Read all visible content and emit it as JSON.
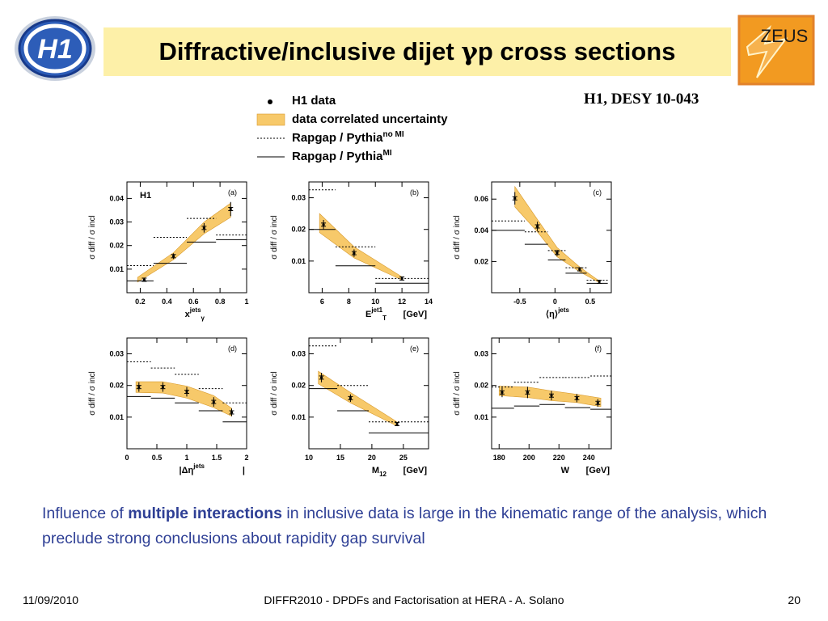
{
  "header": {
    "title_prefix": "Diffractive/inclusive dijet ",
    "title_greek": "γ",
    "title_suffix": "p cross sections",
    "reference": "H1, DESY 10-043",
    "left_logo_text": "H1",
    "right_logo_text": "ZEUS"
  },
  "legend": {
    "items": [
      {
        "marker": "point",
        "label": "H1 data",
        "sup": ""
      },
      {
        "marker": "band",
        "label": "data correlated uncertainty",
        "sup": ""
      },
      {
        "marker": "dotted",
        "label": "Rapgap / Pythia",
        "sup": "no MI"
      },
      {
        "marker": "solid",
        "label": "Rapgap / Pythia",
        "sup": "MI"
      }
    ]
  },
  "colors": {
    "band": "#f7c96a",
    "band_edge": "#d89a2c",
    "title_bg": "#fdf0a8",
    "note_text": "#2e3f95",
    "h1_logo": "#2d5db8",
    "zeus_logo": "#f29a21"
  },
  "chart_data": [
    {
      "type": "line",
      "panel": "(a)",
      "experiment_label": "H1",
      "ylabel": "σ diff / σ incl",
      "xlabel_main": "x",
      "xlabel_sup": "jets",
      "xlabel_sub": "γ",
      "xunit": "",
      "xlim": [
        0.1,
        1.0
      ],
      "ylim": [
        0.0,
        0.047
      ],
      "xticks": [
        0.2,
        0.4,
        0.6,
        0.8,
        1
      ],
      "xtick_labels": [
        "0.2",
        "0.4",
        "0.6",
        "0.8",
        "1"
      ],
      "yticks": [
        0.01,
        0.02,
        0.03,
        0.04
      ],
      "ytick_labels": [
        "0.01",
        "0.02",
        "0.03",
        "0.04"
      ],
      "data": {
        "x": [
          0.23,
          0.45,
          0.68,
          0.88
        ],
        "y": [
          0.0055,
          0.0155,
          0.0275,
          0.0355
        ],
        "err": [
          0.0008,
          0.0012,
          0.002,
          0.003
        ]
      },
      "band": {
        "x": [
          0.18,
          0.45,
          0.68,
          0.88
        ],
        "low": [
          0.0045,
          0.014,
          0.025,
          0.032
        ],
        "high": [
          0.0065,
          0.017,
          0.03,
          0.038
        ]
      },
      "no_mi": {
        "edges": [
          0.1,
          0.3,
          0.55,
          0.77,
          1.0
        ],
        "values": [
          0.0115,
          0.0235,
          0.0315,
          0.0245
        ]
      },
      "mi": {
        "edges": [
          0.1,
          0.3,
          0.55,
          0.77,
          1.0
        ],
        "values": [
          0.005,
          0.0125,
          0.0215,
          0.0225
        ]
      }
    },
    {
      "type": "line",
      "panel": "(b)",
      "experiment_label": "",
      "ylabel": "σ diff / σ incl",
      "xlabel_main": "E",
      "xlabel_sup": "jet1",
      "xlabel_sub": "T",
      "xunit": "[GeV]",
      "xlim": [
        5,
        14
      ],
      "ylim": [
        0.0,
        0.035
      ],
      "xticks": [
        6,
        8,
        10,
        12,
        14
      ],
      "xtick_labels": [
        "6",
        "8",
        "10",
        "12",
        "14"
      ],
      "yticks": [
        0.01,
        0.02,
        0.03
      ],
      "ytick_labels": [
        "0.01",
        "0.02",
        "0.03"
      ],
      "data": {
        "x": [
          6.1,
          8.4,
          12.0
        ],
        "y": [
          0.0215,
          0.0125,
          0.0045
        ],
        "err": [
          0.0015,
          0.0012,
          0.0006
        ]
      },
      "band": {
        "x": [
          5.8,
          8.4,
          12.0
        ],
        "low": [
          0.019,
          0.011,
          0.004
        ],
        "high": [
          0.025,
          0.0145,
          0.005
        ]
      },
      "no_mi": {
        "edges": [
          5,
          7,
          10,
          14
        ],
        "values": [
          0.0325,
          0.0145,
          0.0045
        ]
      },
      "mi": {
        "edges": [
          5,
          7,
          10,
          14
        ],
        "values": [
          0.02,
          0.0085,
          0.003
        ]
      }
    },
    {
      "type": "line",
      "panel": "(c)",
      "experiment_label": "",
      "ylabel": "σ diff / σ incl",
      "xlabel_main": "⟨η⟩",
      "xlabel_sup": "jets",
      "xlabel_sub": "",
      "xunit": "",
      "xlim": [
        -0.9,
        0.8
      ],
      "ylim": [
        0.0,
        0.071
      ],
      "xticks": [
        -0.5,
        0,
        0.5
      ],
      "xtick_labels": [
        "-0.5",
        "0",
        "0.5"
      ],
      "yticks": [
        0.02,
        0.04,
        0.06
      ],
      "ytick_labels": [
        "0.02",
        "0.04",
        "0.06"
      ],
      "data": {
        "x": [
          -0.57,
          -0.25,
          0.03,
          0.35,
          0.63
        ],
        "y": [
          0.0605,
          0.0425,
          0.0255,
          0.015,
          0.007
        ],
        "err": [
          0.004,
          0.003,
          0.002,
          0.001,
          0.0006
        ]
      },
      "band": {
        "x": [
          -0.57,
          -0.25,
          0.03,
          0.35,
          0.63
        ],
        "low": [
          0.055,
          0.039,
          0.023,
          0.0135,
          0.0065
        ],
        "high": [
          0.068,
          0.047,
          0.029,
          0.0165,
          0.0075
        ]
      },
      "no_mi": {
        "edges": [
          -0.9,
          -0.43,
          -0.1,
          0.15,
          0.45,
          0.75
        ],
        "values": [
          0.046,
          0.039,
          0.027,
          0.016,
          0.008
        ]
      },
      "mi": {
        "edges": [
          -0.9,
          -0.43,
          -0.1,
          0.15,
          0.45,
          0.75
        ],
        "values": [
          0.04,
          0.031,
          0.021,
          0.0125,
          0.006
        ]
      }
    },
    {
      "type": "line",
      "panel": "(d)",
      "experiment_label": "",
      "ylabel": "σ diff / σ incl",
      "xlabel_main": "|Δη",
      "xlabel_sup": "jets",
      "xlabel_sub": "",
      "xunit": "|",
      "xlim": [
        0,
        2
      ],
      "ylim": [
        0.0,
        0.035
      ],
      "xticks": [
        0,
        0.5,
        1,
        1.5,
        2
      ],
      "xtick_labels": [
        "0",
        "0.5",
        "1",
        "1.5",
        "2"
      ],
      "yticks": [
        0.01,
        0.02,
        0.03
      ],
      "ytick_labels": [
        "0.01",
        "0.02",
        "0.03"
      ],
      "data": {
        "x": [
          0.2,
          0.6,
          1.0,
          1.45,
          1.75
        ],
        "y": [
          0.0195,
          0.0195,
          0.018,
          0.0148,
          0.0115
        ],
        "err": [
          0.0015,
          0.0015,
          0.0015,
          0.0015,
          0.0012
        ]
      },
      "band": {
        "x": [
          0.15,
          0.6,
          1.0,
          1.45,
          1.75
        ],
        "low": [
          0.0178,
          0.0176,
          0.016,
          0.013,
          0.0103
        ],
        "high": [
          0.0212,
          0.0212,
          0.0198,
          0.0168,
          0.0128
        ]
      },
      "no_mi": {
        "edges": [
          0,
          0.4,
          0.8,
          1.2,
          1.6,
          2.0
        ],
        "values": [
          0.0275,
          0.0255,
          0.0235,
          0.019,
          0.0145
        ]
      },
      "mi": {
        "edges": [
          0,
          0.4,
          0.8,
          1.2,
          1.6,
          2.0
        ],
        "values": [
          0.0165,
          0.016,
          0.0145,
          0.012,
          0.0085
        ]
      }
    },
    {
      "type": "line",
      "panel": "(e)",
      "experiment_label": "",
      "ylabel": "σ diff / σ incl",
      "xlabel_main": "M",
      "xlabel_sup": "",
      "xlabel_sub": "12",
      "xunit": "[GeV]",
      "xlim": [
        10,
        29
      ],
      "ylim": [
        0.0,
        0.035
      ],
      "xticks": [
        10,
        15,
        20,
        25
      ],
      "xtick_labels": [
        "10",
        "15",
        "20",
        "25"
      ],
      "yticks": [
        0.01,
        0.02,
        0.03
      ],
      "ytick_labels": [
        "0.01",
        "0.02",
        "0.03"
      ],
      "data": {
        "x": [
          12.0,
          16.6,
          24.0
        ],
        "y": [
          0.0225,
          0.016,
          0.0078
        ],
        "err": [
          0.0015,
          0.0012,
          0.0006
        ]
      },
      "band": {
        "x": [
          11.5,
          16.6,
          24.0
        ],
        "low": [
          0.0205,
          0.0145,
          0.0072
        ],
        "high": [
          0.0245,
          0.0178,
          0.0085
        ]
      },
      "no_mi": {
        "edges": [
          10,
          14.5,
          19.5,
          29
        ],
        "values": [
          0.0325,
          0.02,
          0.0085
        ]
      },
      "mi": {
        "edges": [
          10,
          14.5,
          19.5,
          29
        ],
        "values": [
          0.019,
          0.012,
          0.005
        ]
      }
    },
    {
      "type": "line",
      "panel": "(f)",
      "experiment_label": "",
      "ylabel": "σ diff / σ incl",
      "xlabel_main": "W",
      "xlabel_sup": "",
      "xlabel_sub": "",
      "xunit": "[GeV]",
      "xlim": [
        175,
        255
      ],
      "ylim": [
        0.0,
        0.035
      ],
      "xticks": [
        180,
        200,
        220,
        240
      ],
      "xtick_labels": [
        "180",
        "200",
        "220",
        "240"
      ],
      "yticks": [
        0.01,
        0.02,
        0.03
      ],
      "ytick_labels": [
        "0.01",
        "0.02",
        "0.03"
      ],
      "data": {
        "x": [
          182,
          199,
          215,
          232,
          246
        ],
        "y": [
          0.0178,
          0.0178,
          0.0168,
          0.016,
          0.0145
        ],
        "err": [
          0.0015,
          0.0018,
          0.0015,
          0.0013,
          0.0012
        ]
      },
      "band": {
        "x": [
          180,
          199,
          215,
          232,
          248
        ],
        "low": [
          0.0168,
          0.0162,
          0.0152,
          0.0146,
          0.0133
        ],
        "high": [
          0.0198,
          0.0195,
          0.0183,
          0.0172,
          0.016
        ]
      },
      "no_mi": {
        "edges": [
          175,
          190,
          207,
          224,
          241,
          255
        ],
        "values": [
          0.0195,
          0.021,
          0.0225,
          0.0225,
          0.023
        ]
      },
      "mi": {
        "edges": [
          175,
          190,
          207,
          224,
          241,
          255
        ],
        "values": [
          0.0128,
          0.0135,
          0.014,
          0.013,
          0.0125
        ]
      }
    }
  ],
  "note": {
    "before": "Influence of ",
    "bold": "multiple interactions",
    "after": " in inclusive data is large in the kinematic range of the analysis, which preclude strong conclusions about rapidity gap survival"
  },
  "footer": {
    "date": "11/09/2010",
    "center": "DIFFR2010  -  DPDFs and Factorisation at HERA  -  A. Solano",
    "page": "20"
  }
}
